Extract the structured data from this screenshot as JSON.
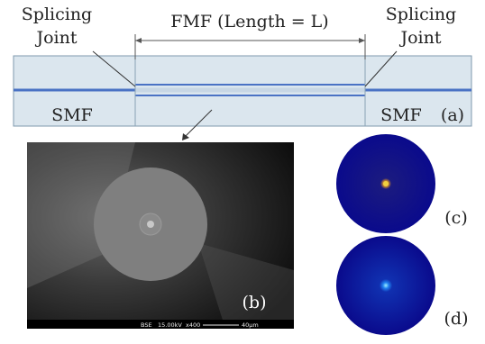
{
  "labels": {
    "splice_left_line1": "Splicing",
    "splice_left_line2": "Joint",
    "splice_right_line1": "Splicing",
    "splice_right_line2": "Joint",
    "fmf": "FMF (Length = L)",
    "smf_left": "SMF",
    "smf_right": "SMF",
    "panel_a": "(a)",
    "panel_b": "(b)",
    "panel_c": "(c)",
    "panel_d": "(d)"
  },
  "sem_info": {
    "detector": "BSE",
    "voltage": "15.00kV",
    "magnification": "x400",
    "scale": "40µm"
  },
  "colors": {
    "fiber_fill": "#dbe6ee",
    "fiber_edge": "#7f9aae",
    "core": "#4a72c4",
    "mode_disk": "#0a0a8c",
    "mode_c_center": "#f0d040",
    "mode_d_center": "#40c0ff"
  }
}
